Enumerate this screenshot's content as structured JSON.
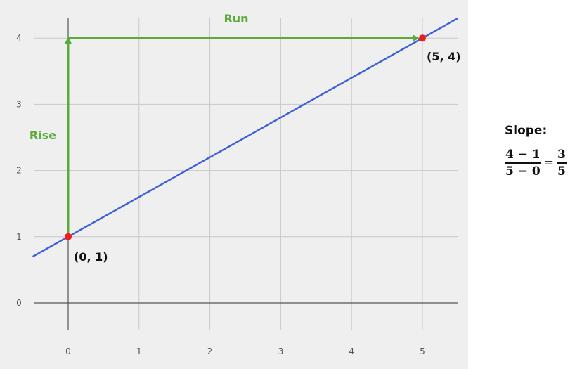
{
  "chart_data": {
    "type": "line",
    "title": "",
    "xlabel": "",
    "ylabel": "",
    "xlim": [
      -0.5,
      5.5
    ],
    "ylim": [
      -0.4,
      4.4
    ],
    "x_ticks": [
      "0",
      "1",
      "2",
      "3",
      "4",
      "5"
    ],
    "y_ticks": [
      "0",
      "1",
      "2",
      "3",
      "4"
    ],
    "grid": true,
    "line": {
      "slope": 0.6,
      "intercept": 1,
      "x_range": [
        -0.5,
        5.5
      ],
      "color": "#3b5fd9"
    },
    "points": [
      {
        "x": 0,
        "y": 1,
        "label": "(0, 1)",
        "color": "#ee1c1c"
      },
      {
        "x": 5,
        "y": 4,
        "label": "(5, 4)",
        "color": "#ee1c1c"
      }
    ],
    "rise": {
      "x": 0,
      "from": 1,
      "to": 4,
      "label": "Rise",
      "color": "#5aaa3c"
    },
    "run": {
      "y": 4,
      "from": 0,
      "to": 5,
      "label": "Run",
      "color": "#5aaa3c"
    }
  },
  "slope": {
    "title": "Slope:",
    "numerator": "4 − 1",
    "denominator": "5 − 0",
    "equals": "=",
    "result_numerator": "3",
    "result_denominator": "5"
  }
}
